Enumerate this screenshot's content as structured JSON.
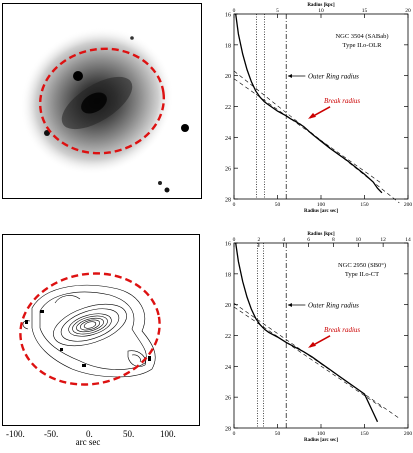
{
  "image_panel": {
    "description_hidden": true
  },
  "contour_panel": {
    "x_ticks": [
      "-100.",
      "-50.",
      "0.",
      "50.",
      "100."
    ],
    "x_label": "arc sec"
  },
  "top_chart": {
    "title": "NGC 3504 (SABab)",
    "subtitle": "Type II.o-OLR",
    "annotation_ring": "Outer Ring radius",
    "annotation_break": "Break radius",
    "top_axis_label": "Radius [kpc]",
    "bottom_axis_label": "Radius [arc sec]",
    "top_ticks": [
      "0",
      "5",
      "10",
      "15",
      "20"
    ],
    "bottom_ticks": [
      "0",
      "50",
      "100",
      "150",
      "200"
    ],
    "y_ticks": [
      "16",
      "18",
      "20",
      "22",
      "24",
      "26",
      "28"
    ]
  },
  "bottom_chart": {
    "title": "NGC 2950 (SB0°)",
    "subtitle": "Type II.o-CT",
    "annotation_ring": "Outer Ring radius",
    "annotation_break": "Break radius",
    "top_axis_label": "Radius [kpc]",
    "bottom_axis_label": "Radius [arc sec]",
    "top_ticks": [
      "0",
      "2",
      "4",
      "6",
      "8",
      "10",
      "12",
      "14"
    ],
    "bottom_ticks": [
      "0",
      "50",
      "100",
      "150",
      "200"
    ],
    "y_ticks": [
      "16",
      "18",
      "20",
      "22",
      "24",
      "26",
      "28"
    ]
  },
  "chart_data": [
    {
      "type": "line",
      "title": "NGC 3504 (SABab)",
      "xlabel": "Radius [arc sec]",
      "ylabel": "",
      "xlim": [
        0,
        200
      ],
      "ylim": [
        28,
        16
      ],
      "series": [
        {
          "x": [
            2,
            5,
            10,
            15,
            20,
            25,
            30,
            35,
            40,
            45,
            50,
            55,
            60,
            65,
            70,
            80,
            90,
            100,
            110,
            120,
            130,
            140,
            150,
            160,
            165,
            170
          ],
          "y": [
            16.0,
            17.3,
            18.6,
            19.6,
            20.4,
            21.0,
            21.4,
            21.7,
            21.9,
            22.1,
            22.3,
            22.45,
            22.6,
            22.8,
            22.95,
            23.3,
            23.8,
            24.25,
            24.7,
            25.1,
            25.5,
            25.95,
            26.4,
            26.9,
            27.3,
            27.6
          ]
        }
      ],
      "reference_lines": {
        "dotted_x": [
          26,
          35
        ],
        "dash_dot_x": [
          60
        ]
      }
    },
    {
      "type": "line",
      "title": "NGC 2950 (SB0°)",
      "xlabel": "Radius [arc sec]",
      "ylabel": "",
      "xlim": [
        0,
        200
      ],
      "ylim": [
        28,
        16
      ],
      "series": [
        {
          "x": [
            2,
            5,
            10,
            15,
            20,
            25,
            30,
            35,
            40,
            50,
            60,
            70,
            80,
            90,
            100,
            110,
            120,
            130,
            140,
            150,
            160,
            165
          ],
          "y": [
            16.0,
            17.2,
            18.5,
            19.5,
            20.3,
            20.9,
            21.3,
            21.6,
            21.8,
            22.1,
            22.45,
            22.75,
            23.05,
            23.4,
            23.8,
            24.2,
            24.6,
            25.0,
            25.4,
            25.8,
            27.0,
            27.6
          ]
        }
      ],
      "reference_lines": {
        "dotted_x": [
          27,
          34
        ],
        "dash_dot_x": [
          60
        ]
      }
    }
  ]
}
